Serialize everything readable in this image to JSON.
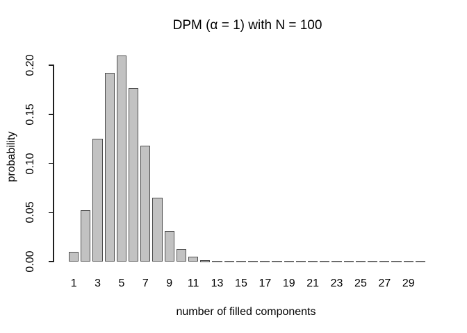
{
  "chart_data": {
    "type": "bar",
    "title": "DPM (α = 1) with N = 100",
    "xlabel": "number of filled components",
    "ylabel": "probability",
    "categories": [
      1,
      2,
      3,
      4,
      5,
      6,
      7,
      8,
      9,
      10,
      11,
      12,
      13,
      14,
      15,
      16,
      17,
      18,
      19,
      20,
      21,
      22,
      23,
      24,
      25,
      26,
      27,
      28,
      29,
      30
    ],
    "values": [
      0.01,
      0.052,
      0.125,
      0.192,
      0.21,
      0.177,
      0.118,
      0.065,
      0.031,
      0.0126,
      0.0046,
      0.0015,
      0.0004,
      0.0001,
      0,
      0,
      0,
      0,
      0,
      0,
      0,
      0,
      0,
      0,
      0,
      0,
      0,
      0,
      0,
      0
    ],
    "y_ticks": [
      "0.00",
      "0.05",
      "0.10",
      "0.15",
      "0.20"
    ],
    "x_tick_labels": [
      "1",
      "3",
      "5",
      "7",
      "9",
      "11",
      "13",
      "15",
      "17",
      "19",
      "21",
      "23",
      "25",
      "27",
      "29"
    ],
    "ylim": [
      0,
      0.21
    ],
    "grid": false,
    "legend": "none",
    "bar_fill": "#c2c2c2",
    "bar_border": "#4d4d4d",
    "zero_bar_color": "#6b6b6b",
    "axis_color": "#1f1f1f",
    "background": "#ffffff"
  }
}
